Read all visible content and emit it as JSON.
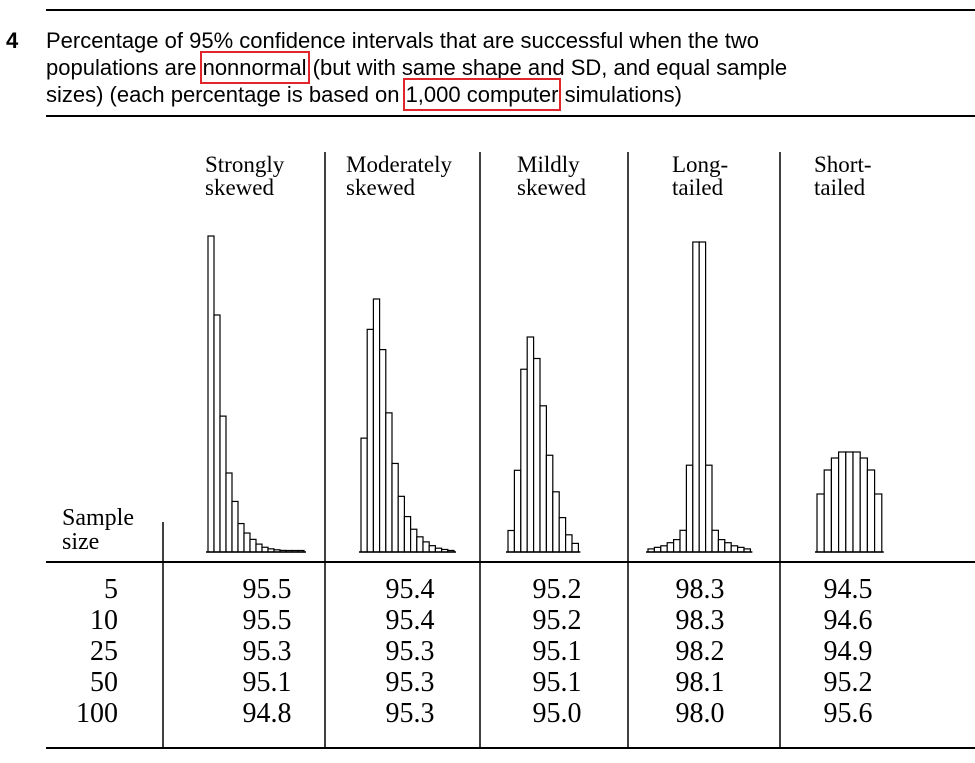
{
  "caption": {
    "table_number": "4",
    "line1": "Percentage of 95% confidence intervals that are successful when the two",
    "line2_a": "populations are",
    "line2_hl": "nonnormal",
    "line2_b": "(but with same shape and SD, and equal sample",
    "line3_a": "sizes) (each percentage is based on",
    "line3_hl": "1,000 computer",
    "line3_b": "simulations)",
    "highlight_color": "#e0262b"
  },
  "table": {
    "row_header_lines": [
      "Sample",
      "size"
    ],
    "columns": [
      {
        "lines": [
          "Strongly",
          "skewed"
        ],
        "hist": [
          1.0,
          0.75,
          0.43,
          0.25,
          0.16,
          0.09,
          0.06,
          0.04,
          0.025,
          0.015,
          0.01,
          0.007,
          0.005,
          0.004,
          0.003,
          0.002
        ]
      },
      {
        "lines": [
          "Moderately",
          "skewed"
        ],
        "hist": [
          0.45,
          0.88,
          1.0,
          0.8,
          0.55,
          0.35,
          0.22,
          0.14,
          0.09,
          0.06,
          0.04,
          0.025,
          0.015,
          0.01,
          0.006
        ]
      },
      {
        "lines": [
          "Mildly",
          "skewed"
        ],
        "hist": [
          0.1,
          0.38,
          0.85,
          1.0,
          0.9,
          0.68,
          0.45,
          0.28,
          0.16,
          0.08,
          0.04
        ]
      },
      {
        "lines": [
          "Long-",
          "tailed"
        ],
        "hist": [
          0.01,
          0.015,
          0.02,
          0.03,
          0.04,
          0.07,
          0.28,
          1.0,
          1.0,
          0.28,
          0.07,
          0.04,
          0.03,
          0.02,
          0.015,
          0.01
        ]
      },
      {
        "lines": [
          "Short-",
          "tailed"
        ],
        "hist": [
          0.58,
          0.82,
          0.94,
          1.0,
          1.0,
          1.0,
          0.94,
          0.82,
          0.58
        ]
      }
    ],
    "rows": [
      {
        "size": "5",
        "values": [
          "95.5",
          "95.4",
          "95.2",
          "98.3",
          "94.5"
        ]
      },
      {
        "size": "10",
        "values": [
          "95.5",
          "95.4",
          "95.2",
          "98.3",
          "94.6"
        ]
      },
      {
        "size": "25",
        "values": [
          "95.3",
          "95.3",
          "95.1",
          "98.2",
          "94.9"
        ]
      },
      {
        "size": "50",
        "values": [
          "95.1",
          "95.3",
          "95.1",
          "98.1",
          "95.2"
        ]
      },
      {
        "size": "100",
        "values": [
          "94.8",
          "95.3",
          "95.0",
          "98.0",
          "95.6"
        ]
      }
    ]
  }
}
